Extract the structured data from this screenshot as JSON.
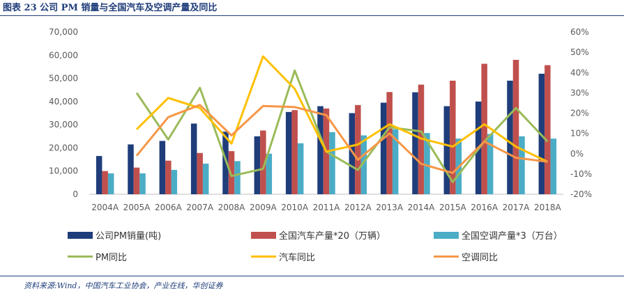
{
  "figure": {
    "title": "图表 23   公司 PM 销量与全国汽车及空调产量及同比",
    "source": "资料来源:Wind，中国汽车工业协会，产业在线，华创证券"
  },
  "chart_data": {
    "type": "bar+line",
    "categories": [
      "2004A",
      "2005A",
      "2006A",
      "2007A",
      "2008A",
      "2009A",
      "2010A",
      "2011A",
      "2012A",
      "2013A",
      "2014A",
      "2015A",
      "2016A",
      "2017A",
      "2018A"
    ],
    "left_axis": {
      "min": 0,
      "max": 70000,
      "ticks": [
        "0",
        "10,000",
        "20,000",
        "30,000",
        "40,000",
        "50,000",
        "60,000",
        "70,000"
      ]
    },
    "right_axis": {
      "min": -20,
      "max": 60,
      "ticks": [
        "-20%",
        "-10%",
        "0%",
        "10%",
        "20%",
        "30%",
        "40%",
        "50%",
        "60%"
      ]
    },
    "bar_series": [
      {
        "name": "公司PM销量(吨)",
        "color": "#1f3d7a",
        "values": [
          16500,
          21500,
          23000,
          30500,
          27000,
          25000,
          35500,
          38000,
          35000,
          39500,
          44000,
          38000,
          40000,
          49000,
          52000
        ]
      },
      {
        "name": "全国汽车产量*20（万辆）",
        "color": "#c0504d",
        "values": [
          10000,
          11500,
          14500,
          17800,
          18600,
          27500,
          36300,
          37000,
          38500,
          44100,
          47300,
          49000,
          56300,
          58000,
          55700
        ]
      },
      {
        "name": "全国空调产量*3（万台）",
        "color": "#4bacc6",
        "values": [
          9000,
          9000,
          10500,
          13200,
          14300,
          17500,
          22000,
          26800,
          25400,
          28000,
          26400,
          24000,
          26000,
          25000,
          24000
        ]
      }
    ],
    "line_series": [
      {
        "name": "PM同比",
        "color": "#9bbb59",
        "values": [
          null,
          30,
          7,
          32.5,
          -11,
          -7.5,
          41,
          1,
          -8,
          13,
          11,
          -14,
          6,
          22.5,
          6
        ]
      },
      {
        "name": "汽车同比",
        "color": "#ffc000",
        "values": [
          null,
          12,
          27.5,
          22.5,
          5,
          48,
          32,
          1,
          4.5,
          14.5,
          7.5,
          3.5,
          14.5,
          3.5,
          -4
        ]
      },
      {
        "name": "空调同比",
        "color": "#f79646",
        "values": [
          null,
          -1,
          18,
          24,
          9,
          23.5,
          23,
          19,
          -3,
          10,
          -5,
          -9.5,
          6,
          -2,
          -4
        ]
      }
    ]
  },
  "legend": {
    "row1": [
      "公司PM销量(吨)",
      "全国汽车产量*20（万辆）",
      "全国空调产量*3（万台）"
    ],
    "row2": [
      "PM同比",
      "汽车同比",
      "空调同比"
    ]
  }
}
